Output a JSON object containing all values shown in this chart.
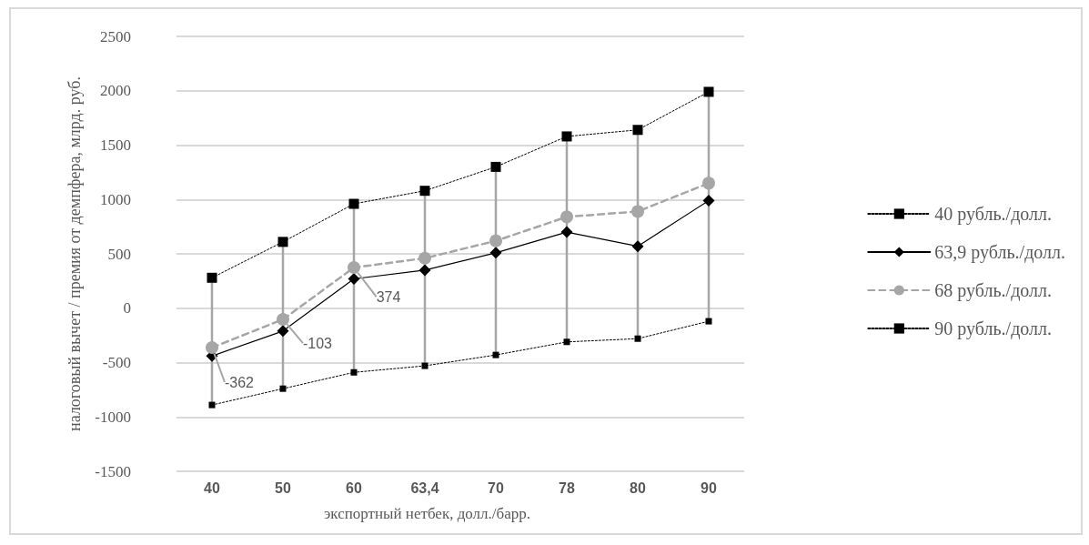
{
  "chart_data": {
    "type": "line",
    "xlabel": "экспортный нетбек, долл./барр.",
    "ylabel": "налоговый вычет / премия от демпфера, млрд. руб.",
    "categories": [
      "40",
      "50",
      "60",
      "63,4",
      "70",
      "78",
      "80",
      "90"
    ],
    "ylim": [
      -1500,
      2500
    ],
    "yticks": [
      -1500,
      -1000,
      -500,
      0,
      500,
      1000,
      1500,
      2000,
      2500
    ],
    "grid": "y",
    "legend": "right",
    "series": [
      {
        "name": "40 рубль./долл.",
        "color": "#000000",
        "line_style": "dotted",
        "marker": "square",
        "values": [
          -890,
          -740,
          -590,
          -530,
          -430,
          -310,
          -280,
          -120
        ]
      },
      {
        "name": "63,9 рубль./долл.",
        "color": "#000000",
        "line_style": "solid",
        "marker": "diamond",
        "values": [
          -440,
          -210,
          270,
          350,
          510,
          700,
          570,
          990
        ]
      },
      {
        "name": "68 рубль./долл.",
        "color": "#a6a6a6",
        "line_style": "dashed",
        "marker": "circle",
        "values": [
          -362,
          -103,
          374,
          460,
          620,
          840,
          890,
          1150
        ],
        "value_labels": [
          "-362",
          "-103",
          "374",
          null,
          null,
          null,
          null,
          null
        ]
      },
      {
        "name": "90 рубль./долл.",
        "color": "#000000",
        "line_style": "dotted",
        "marker": "square",
        "values": [
          280,
          610,
          960,
          1080,
          1300,
          1580,
          1640,
          1990
        ],
        "errors": [
          [
            -890,
            280
          ],
          [
            -740,
            610
          ],
          [
            -590,
            960
          ],
          [
            -530,
            1080
          ],
          [
            -430,
            1300
          ],
          [
            -310,
            1580
          ],
          [
            -280,
            1640
          ],
          [
            -120,
            1990
          ]
        ]
      }
    ]
  }
}
